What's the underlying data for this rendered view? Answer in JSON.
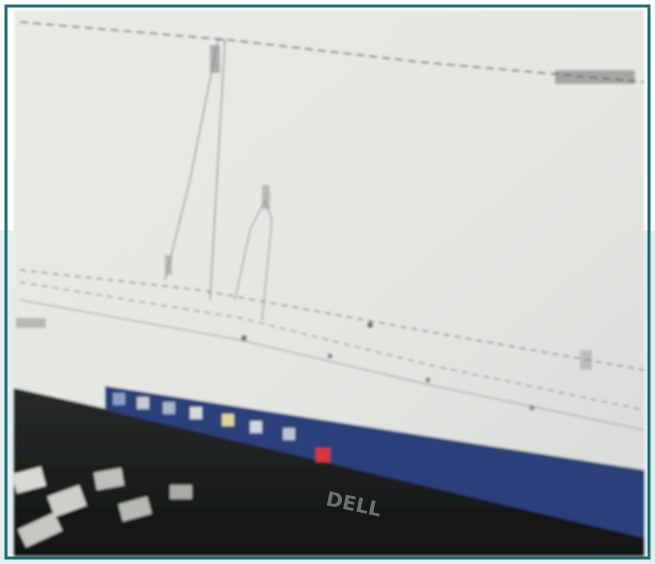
{
  "monitor_brand": "DELL"
}
